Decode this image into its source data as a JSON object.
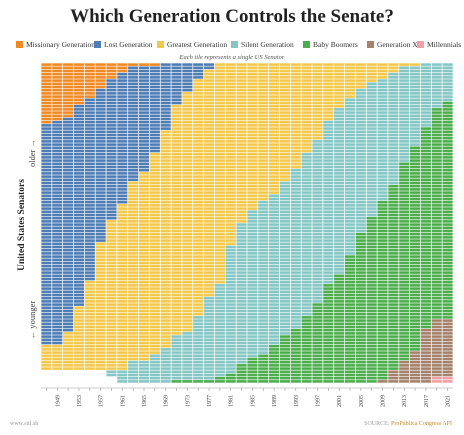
{
  "chart_data": {
    "type": "heatmap",
    "title": "Which Generation Controls the Senate?",
    "subtitle": "Each tile represents a single US Senator",
    "ylabel": "United States Senators",
    "y_older_label": "older →",
    "y_younger_label": "← younger",
    "legend_placement": "top",
    "generations": [
      {
        "name": "Missionary Generation",
        "color": "#f08a24"
      },
      {
        "name": "Lost Generation",
        "color": "#4f7db5"
      },
      {
        "name": "Greatest Generation",
        "color": "#f2c94c"
      },
      {
        "name": "Silent Generation",
        "color": "#85c7c4"
      },
      {
        "name": "Baby Boomers",
        "color": "#4cae4c"
      },
      {
        "name": "Generation X",
        "color": "#a5826b"
      },
      {
        "name": "Millennials",
        "color": "#f2a0a8"
      }
    ],
    "congress_start_years": [
      1947,
      1949,
      1951,
      1953,
      1955,
      1957,
      1959,
      1961,
      1963,
      1965,
      1967,
      1969,
      1971,
      1973,
      1975,
      1977,
      1979,
      1981,
      1983,
      1985,
      1987,
      1989,
      1991,
      1993,
      1995,
      1997,
      1999,
      2001,
      2003,
      2005,
      2007,
      2009,
      2011,
      2013,
      2015,
      2017,
      2019,
      2021
    ],
    "senators_per_congress": [
      96,
      96,
      96,
      96,
      96,
      96,
      98,
      100,
      100,
      100,
      100,
      100,
      100,
      100,
      100,
      100,
      100,
      100,
      100,
      100,
      100,
      100,
      100,
      100,
      100,
      100,
      100,
      100,
      100,
      100,
      100,
      100,
      100,
      100,
      100,
      100,
      100,
      100
    ],
    "series": [
      {
        "name": "Missionary Generation",
        "values": [
          19,
          18,
          17,
          13,
          11,
          8,
          5,
          3,
          1,
          1,
          1,
          0,
          0,
          0,
          0,
          0,
          0,
          0,
          0,
          0,
          0,
          0,
          0,
          0,
          0,
          0,
          0,
          0,
          0,
          0,
          0,
          0,
          0,
          0,
          0,
          0,
          0,
          0
        ]
      },
      {
        "name": "Lost Generation",
        "values": [
          69,
          70,
          67,
          63,
          57,
          48,
          44,
          41,
          36,
          33,
          27,
          21,
          13,
          9,
          5,
          2,
          0,
          0,
          0,
          0,
          0,
          0,
          0,
          0,
          0,
          0,
          0,
          0,
          0,
          0,
          0,
          0,
          0,
          0,
          0,
          0,
          0,
          0
        ]
      },
      {
        "name": "Greatest Generation",
        "values": [
          8,
          8,
          12,
          20,
          28,
          40,
          47,
          52,
          56,
          59,
          63,
          68,
          72,
          75,
          74,
          71,
          69,
          57,
          50,
          46,
          43,
          41,
          37,
          33,
          28,
          24,
          18,
          14,
          11,
          8,
          6,
          5,
          3,
          1,
          1,
          0,
          0,
          0
        ]
      },
      {
        "name": "Silent Generation",
        "values": [
          0,
          0,
          0,
          0,
          0,
          0,
          2,
          4,
          7,
          7,
          9,
          11,
          14,
          15,
          20,
          26,
          29,
          40,
          44,
          46,
          48,
          47,
          48,
          50,
          51,
          51,
          51,
          52,
          49,
          45,
          42,
          38,
          35,
          30,
          25,
          20,
          14,
          12
        ]
      },
      {
        "name": "Baby Boomers",
        "values": [
          0,
          0,
          0,
          0,
          0,
          0,
          0,
          0,
          0,
          0,
          0,
          0,
          1,
          1,
          1,
          1,
          2,
          3,
          6,
          8,
          9,
          12,
          15,
          17,
          21,
          25,
          31,
          34,
          40,
          47,
          52,
          56,
          58,
          62,
          64,
          63,
          66,
          68
        ]
      },
      {
        "name": "Generation X",
        "values": [
          0,
          0,
          0,
          0,
          0,
          0,
          0,
          0,
          0,
          0,
          0,
          0,
          0,
          0,
          0,
          0,
          0,
          0,
          0,
          0,
          0,
          0,
          0,
          0,
          0,
          0,
          0,
          0,
          0,
          0,
          0,
          1,
          4,
          7,
          10,
          17,
          18,
          18
        ]
      },
      {
        "name": "Millennials",
        "values": [
          0,
          0,
          0,
          0,
          0,
          0,
          0,
          0,
          0,
          0,
          0,
          0,
          0,
          0,
          0,
          0,
          0,
          0,
          0,
          0,
          0,
          0,
          0,
          0,
          0,
          0,
          0,
          0,
          0,
          0,
          0,
          0,
          0,
          0,
          0,
          0,
          2,
          2
        ]
      }
    ],
    "x_tick_labels": [
      "1949",
      "1953",
      "1957",
      "1961",
      "1965",
      "1969",
      "1973",
      "1977",
      "1981",
      "1985",
      "1989",
      "1993",
      "1997",
      "2001",
      "2005",
      "2009",
      "2013",
      "2017",
      "2021"
    ],
    "grid": false
  },
  "footer": {
    "left": "www.sttl.sh",
    "right_prefix": "SOURCE: ",
    "right_link": "ProPublica Congress API"
  }
}
